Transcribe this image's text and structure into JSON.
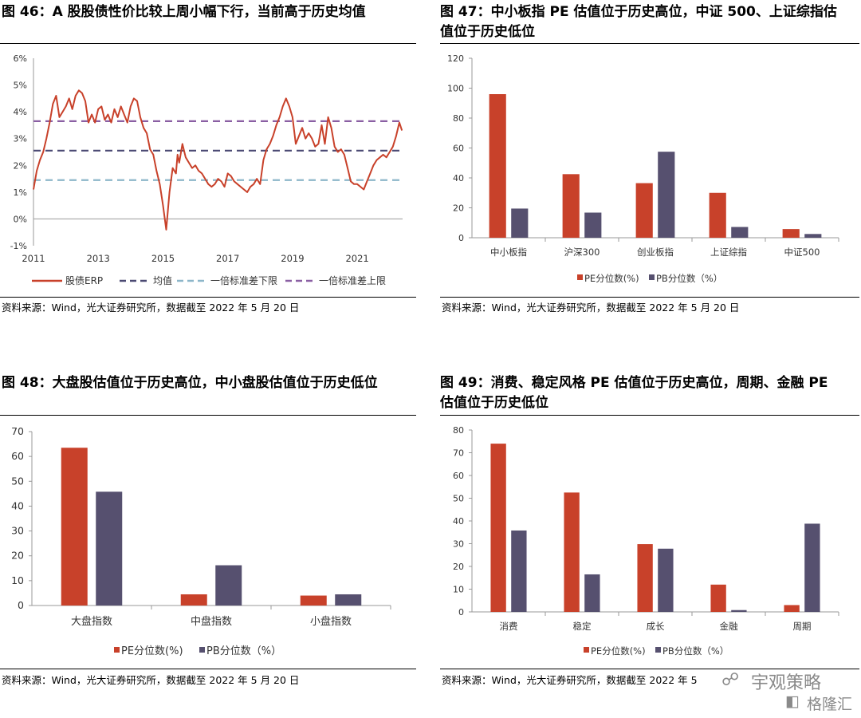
{
  "panels": {
    "p46": {
      "title": "图 46：A 股股债性价比较上周小幅下行，当前高于历史均值",
      "source": "资料来源：Wind，光大证券研究所，数据截至 2022 年 5 月 20 日"
    },
    "p47": {
      "title_line1": "图 47：中小板指 PE 估值位于历史高位，中证 500、上证综指估",
      "title_line2": "值位于历史低位",
      "source": "资料来源：Wind，光大证券研究所，数据截至 2022 年 5 月 20 日"
    },
    "p48": {
      "title": "图 48：大盘股估值位于历史高位，中小盘股估值位于历史低位",
      "source": "资料来源：Wind，光大证券研究所，数据截至 2022 年 5 月 20 日"
    },
    "p49": {
      "title_line1": "图 49：消费、稳定风格 PE 估值位于历史高位，周期、金融 PE",
      "title_line2": "估值位于历史低位",
      "source": "资料来源：Wind，光大证券研究所，数据截至 2022 年 5"
    }
  },
  "watermark": {
    "line1": "宇观策略",
    "line2": "格隆汇"
  },
  "colors": {
    "pe": "#c8412a",
    "pb": "#56506f",
    "mean": "#4b4a73",
    "lower": "#8cb6c9",
    "upper": "#8a5fa3",
    "erp": "#c8412a"
  },
  "chart_data": [
    {
      "id": "erp",
      "type": "line",
      "ylim": [
        -1,
        6
      ],
      "yticks": [
        "-1%",
        "0%",
        "1%",
        "2%",
        "3%",
        "4%",
        "5%",
        "6%"
      ],
      "xlim": [
        2011,
        2022.4
      ],
      "xticks": [
        "2011",
        "2013",
        "2015",
        "2017",
        "2019",
        "2021"
      ],
      "grid": false,
      "legend": "bottom",
      "hlines": [
        {
          "name": "均值",
          "value": 2.55,
          "color": "#4b4a73"
        },
        {
          "name": "一倍标准差下限",
          "value": 1.45,
          "color": "#8cb6c9"
        },
        {
          "name": "一倍标准差上限",
          "value": 3.65,
          "color": "#8a5fa3"
        }
      ],
      "series": [
        {
          "name": "股债ERP",
          "x": [
            2011.0,
            2011.1,
            2011.2,
            2011.3,
            2011.4,
            2011.5,
            2011.6,
            2011.7,
            2011.8,
            2011.9,
            2012.0,
            2012.1,
            2012.2,
            2012.3,
            2012.4,
            2012.5,
            2012.6,
            2012.7,
            2012.8,
            2012.9,
            2013.0,
            2013.1,
            2013.2,
            2013.3,
            2013.4,
            2013.5,
            2013.6,
            2013.7,
            2013.8,
            2013.9,
            2014.0,
            2014.1,
            2014.2,
            2014.3,
            2014.4,
            2014.5,
            2014.6,
            2014.7,
            2014.8,
            2014.9,
            2015.0,
            2015.1,
            2015.2,
            2015.3,
            2015.4,
            2015.45,
            2015.5,
            2015.6,
            2015.7,
            2015.8,
            2015.9,
            2016.0,
            2016.1,
            2016.2,
            2016.3,
            2016.4,
            2016.5,
            2016.6,
            2016.7,
            2016.8,
            2016.9,
            2017.0,
            2017.1,
            2017.2,
            2017.3,
            2017.4,
            2017.5,
            2017.6,
            2017.7,
            2017.8,
            2017.9,
            2018.0,
            2018.1,
            2018.2,
            2018.3,
            2018.4,
            2018.5,
            2018.6,
            2018.7,
            2018.8,
            2018.9,
            2019.0,
            2019.1,
            2019.2,
            2019.3,
            2019.4,
            2019.5,
            2019.6,
            2019.7,
            2019.8,
            2019.9,
            2020.0,
            2020.1,
            2020.2,
            2020.3,
            2020.4,
            2020.5,
            2020.6,
            2020.7,
            2020.8,
            2020.9,
            2021.0,
            2021.1,
            2021.2,
            2021.3,
            2021.4,
            2021.5,
            2021.6,
            2021.7,
            2021.8,
            2021.9,
            2022.0,
            2022.1,
            2022.2,
            2022.3,
            2022.38
          ],
          "y": [
            1.1,
            1.8,
            2.2,
            2.5,
            3.0,
            3.6,
            4.3,
            4.6,
            3.8,
            4.0,
            4.2,
            4.5,
            4.1,
            4.6,
            4.8,
            4.7,
            4.4,
            3.6,
            3.9,
            3.6,
            4.1,
            4.2,
            3.7,
            3.9,
            3.6,
            4.1,
            3.8,
            4.2,
            3.9,
            3.6,
            4.2,
            4.5,
            4.4,
            3.8,
            3.4,
            3.2,
            2.6,
            2.4,
            1.8,
            1.3,
            0.5,
            -0.4,
            1.0,
            1.9,
            1.7,
            2.4,
            2.1,
            2.8,
            2.3,
            2.1,
            1.9,
            2.0,
            1.8,
            1.7,
            1.5,
            1.3,
            1.2,
            1.3,
            1.5,
            1.4,
            1.2,
            1.7,
            1.6,
            1.4,
            1.3,
            1.2,
            1.1,
            1.0,
            1.2,
            1.3,
            1.5,
            1.3,
            2.2,
            2.6,
            2.8,
            3.1,
            3.5,
            3.8,
            4.2,
            4.5,
            4.2,
            3.8,
            2.8,
            3.1,
            3.4,
            3.0,
            3.2,
            3.0,
            2.7,
            2.8,
            3.5,
            2.8,
            3.8,
            3.4,
            2.7,
            2.5,
            2.6,
            2.4,
            1.9,
            1.4,
            1.3,
            1.3,
            1.2,
            1.1,
            1.4,
            1.7,
            2.0,
            2.2,
            2.3,
            2.4,
            2.3,
            2.5,
            2.7,
            3.1,
            3.6,
            3.3
          ],
          "color": "#c8412a"
        }
      ]
    },
    {
      "id": "indices",
      "type": "bar",
      "categories": [
        "中小板指",
        "沪深300",
        "创业板指",
        "上证综指",
        "中证500"
      ],
      "ylim": [
        0,
        120
      ],
      "yticks": [
        "0",
        "20",
        "40",
        "60",
        "80",
        "100",
        "120"
      ],
      "legend": "bottom",
      "series": [
        {
          "name": "PE分位数(%)",
          "values": [
            96,
            42.5,
            36.5,
            30,
            5.8
          ],
          "color": "#c8412a"
        },
        {
          "name": "PB分位数（%）",
          "values": [
            19.5,
            16.8,
            57.5,
            7.2,
            2.5
          ],
          "color": "#56506f"
        }
      ]
    },
    {
      "id": "caps",
      "type": "bar",
      "categories": [
        "大盘指数",
        "中盘指数",
        "小盘指数"
      ],
      "ylim": [
        0,
        70
      ],
      "yticks": [
        "0",
        "10",
        "20",
        "30",
        "40",
        "50",
        "60",
        "70"
      ],
      "legend": "bottom",
      "series": [
        {
          "name": "PE分位数(%)",
          "values": [
            63.5,
            4.5,
            4.0
          ],
          "color": "#c8412a"
        },
        {
          "name": "PB分位数（%）",
          "values": [
            45.8,
            16.2,
            4.5
          ],
          "color": "#56506f"
        }
      ]
    },
    {
      "id": "styles",
      "type": "bar",
      "categories": [
        "消费",
        "稳定",
        "成长",
        "金融",
        "周期"
      ],
      "ylim": [
        0,
        80
      ],
      "yticks": [
        "0",
        "10",
        "20",
        "30",
        "40",
        "50",
        "60",
        "70",
        "80"
      ],
      "legend": "bottom",
      "series": [
        {
          "name": "PE分位数(%)",
          "values": [
            74,
            52.5,
            29.8,
            12,
            3
          ],
          "color": "#c8412a"
        },
        {
          "name": "PB分位数（%）",
          "values": [
            35.8,
            16.5,
            27.8,
            0.8,
            38.8
          ],
          "color": "#56506f"
        }
      ]
    }
  ]
}
